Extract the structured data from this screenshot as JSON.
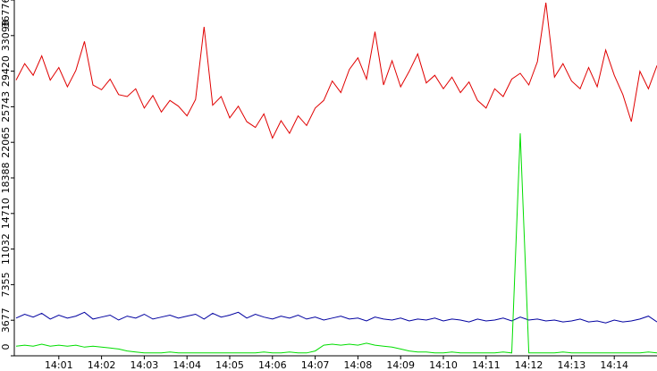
{
  "chart_data": {
    "type": "line",
    "x": [
      0,
      0.2,
      0.4,
      0.6,
      0.8,
      1,
      1.2,
      1.4,
      1.6,
      1.8,
      2,
      2.2,
      2.4,
      2.6,
      2.8,
      3,
      3.2,
      3.4,
      3.6,
      3.8,
      4,
      4.2,
      4.4,
      4.6,
      4.8,
      5,
      5.2,
      5.4,
      5.6,
      5.8,
      6,
      6.2,
      6.4,
      6.6,
      6.8,
      7,
      7.2,
      7.4,
      7.6,
      7.8,
      8,
      8.2,
      8.4,
      8.6,
      8.8,
      9,
      9.2,
      9.4,
      9.6,
      9.8,
      10,
      10.2,
      10.4,
      10.6,
      10.8,
      11,
      11.2,
      11.4,
      11.6,
      11.8,
      12,
      12.2,
      12.4,
      12.6,
      12.8,
      13,
      13.2,
      13.4,
      13.6,
      13.8,
      14,
      14.2,
      14.4,
      14.6,
      14.8,
      15
    ],
    "series": [
      {
        "color": "#e00000",
        "values": [
          28500,
          30200,
          29000,
          31000,
          28500,
          29800,
          27800,
          29500,
          32500,
          28000,
          27500,
          28600,
          27000,
          26800,
          27600,
          25600,
          26900,
          25200,
          26400,
          25800,
          24800,
          26500,
          34000,
          25900,
          26800,
          24600,
          25800,
          24200,
          23600,
          25000,
          22500,
          24300,
          23000,
          24800,
          23800,
          25600,
          26400,
          28400,
          27200,
          29600,
          30800,
          28600,
          33500,
          28000,
          30500,
          27800,
          29400,
          31200,
          28200,
          29000,
          27600,
          28800,
          27200,
          28300,
          26400,
          25600,
          27600,
          26800,
          28600,
          29200,
          28000,
          30400,
          36500,
          28800,
          30200,
          28400,
          27600,
          29800,
          27800,
          31600,
          29000,
          27000,
          24200,
          29400,
          27600,
          30000
        ]
      },
      {
        "color": "#0000a0",
        "values": [
          3900,
          4300,
          4000,
          4400,
          3800,
          4200,
          3900,
          4100,
          4500,
          3800,
          4000,
          4200,
          3700,
          4100,
          3900,
          4300,
          3800,
          4000,
          4200,
          3900,
          4100,
          4300,
          3800,
          4400,
          4000,
          4200,
          4500,
          3900,
          4300,
          4000,
          3800,
          4100,
          3900,
          4200,
          3800,
          4000,
          3700,
          3900,
          4100,
          3800,
          3900,
          3600,
          4000,
          3800,
          3700,
          3900,
          3600,
          3800,
          3700,
          3900,
          3600,
          3800,
          3700,
          3500,
          3800,
          3600,
          3700,
          3900,
          3600,
          4000,
          3700,
          3800,
          3600,
          3700,
          3500,
          3600,
          3800,
          3500,
          3600,
          3400,
          3700,
          3500,
          3600,
          3800,
          4100,
          3500
        ]
      },
      {
        "color": "#00dd00",
        "values": [
          1000,
          1100,
          1000,
          1200,
          1000,
          1100,
          1000,
          1100,
          900,
          1000,
          900,
          800,
          700,
          500,
          400,
          300,
          300,
          300,
          400,
          300,
          300,
          300,
          300,
          300,
          300,
          300,
          300,
          300,
          300,
          400,
          300,
          300,
          400,
          300,
          300,
          500,
          1100,
          1200,
          1100,
          1200,
          1100,
          1300,
          1100,
          1000,
          900,
          700,
          500,
          400,
          400,
          300,
          300,
          400,
          300,
          300,
          300,
          300,
          300,
          400,
          300,
          23000,
          300,
          300,
          300,
          300,
          400,
          300,
          300,
          300,
          300,
          300,
          300,
          300,
          300,
          300,
          400,
          300
        ]
      }
    ],
    "xlim": [
      0,
      15
    ],
    "ylim": [
      0,
      36776
    ],
    "xticks": [
      {
        "value": 1,
        "label": "14:01"
      },
      {
        "value": 2,
        "label": "14:02"
      },
      {
        "value": 3,
        "label": "14:03"
      },
      {
        "value": 4,
        "label": "14:04"
      },
      {
        "value": 5,
        "label": "14:05"
      },
      {
        "value": 6,
        "label": "14:06"
      },
      {
        "value": 7,
        "label": "14:07"
      },
      {
        "value": 8,
        "label": "14:08"
      },
      {
        "value": 9,
        "label": "14:09"
      },
      {
        "value": 10,
        "label": "14:10"
      },
      {
        "value": 11,
        "label": "14:11"
      },
      {
        "value": 12,
        "label": "14:12"
      },
      {
        "value": 13,
        "label": "14:13"
      },
      {
        "value": 14,
        "label": "14:14"
      }
    ],
    "yticks": [
      0,
      3677,
      7355,
      11032,
      14710,
      18388,
      22065,
      25743,
      29420,
      33098,
      36776
    ]
  }
}
